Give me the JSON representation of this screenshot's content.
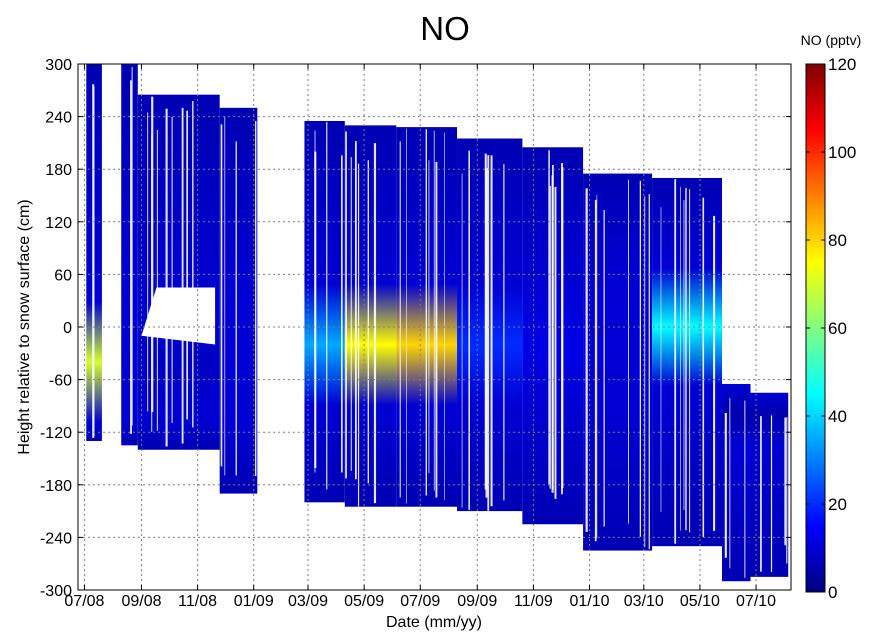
{
  "chart_data": {
    "type": "heatmap",
    "title": "NO",
    "xlabel": "Date (mm/yy)",
    "ylabel": "Height relative to snow surface (cm)",
    "x_ticks": [
      "07/08",
      "09/08",
      "11/08",
      "01/09",
      "03/09",
      "05/09",
      "07/09",
      "09/09",
      "11/09",
      "01/10",
      "03/10",
      "05/10",
      "07/10"
    ],
    "y_ticks": [
      300,
      240,
      180,
      120,
      60,
      0,
      -60,
      -120,
      -180,
      -240,
      -300
    ],
    "ylim": [
      -300,
      300
    ],
    "xlim": [
      "2008-07",
      "2010-08"
    ],
    "grid": true,
    "colorbar": {
      "title": "NO (pptv)",
      "ticks": [
        0,
        20,
        40,
        60,
        80,
        100,
        120
      ],
      "range": [
        0,
        120
      ],
      "colormap": "jet",
      "colors": [
        "#00007f",
        "#0000ff",
        "#0080ff",
        "#00ffff",
        "#80ff80",
        "#ffff00",
        "#ff8000",
        "#ff0000",
        "#7f0000"
      ]
    },
    "columns": [
      {
        "start": "2008-07-03",
        "end": "2008-07-20",
        "top": 300,
        "bottom": -130,
        "peak_height": -40,
        "peak_value": 70
      },
      {
        "start": "2008-08-10",
        "end": "2008-08-28",
        "top": 300,
        "bottom": -135,
        "peak_height": -40,
        "peak_value": 10
      },
      {
        "start": "2008-08-28",
        "end": "2008-11-25",
        "top": 265,
        "bottom": -140,
        "peak_height": -40,
        "peak_value": 8
      },
      {
        "start": "2008-11-25",
        "end": "2009-01-05",
        "top": 250,
        "bottom": -190,
        "peak_height": -40,
        "peak_value": 10
      },
      {
        "start": "2009-02-25",
        "end": "2009-04-10",
        "top": 235,
        "bottom": -200,
        "peak_height": -20,
        "peak_value": 35
      },
      {
        "start": "2009-04-10",
        "end": "2009-06-05",
        "top": 230,
        "bottom": -205,
        "peak_height": -20,
        "peak_value": 75
      },
      {
        "start": "2009-06-05",
        "end": "2009-08-10",
        "top": 228,
        "bottom": -205,
        "peak_height": -20,
        "peak_value": 80
      },
      {
        "start": "2009-08-10",
        "end": "2009-10-20",
        "top": 215,
        "bottom": -210,
        "peak_height": -20,
        "peak_value": 20
      },
      {
        "start": "2009-10-20",
        "end": "2009-12-25",
        "top": 205,
        "bottom": -225,
        "peak_height": -20,
        "peak_value": 12
      },
      {
        "start": "2009-12-25",
        "end": "2010-03-10",
        "top": 175,
        "bottom": -255,
        "peak_height": -20,
        "peak_value": 10
      },
      {
        "start": "2010-03-10",
        "end": "2010-05-25",
        "top": 170,
        "bottom": -250,
        "peak_height": 0,
        "peak_value": 45
      },
      {
        "start": "2010-05-25",
        "end": "2010-06-25",
        "top": -65,
        "bottom": -290,
        "peak_height": -100,
        "peak_value": 5
      },
      {
        "start": "2010-06-25",
        "end": "2010-08-05",
        "top": -75,
        "bottom": -285,
        "peak_height": -100,
        "peak_value": 5
      }
    ],
    "gap_regions": [
      {
        "start": "2009-01-05",
        "end": "2009-02-25"
      }
    ],
    "void_regions": [
      {
        "start": "2008-09-01",
        "end": "2008-11-20",
        "top": 45,
        "bottom": -10
      }
    ]
  }
}
